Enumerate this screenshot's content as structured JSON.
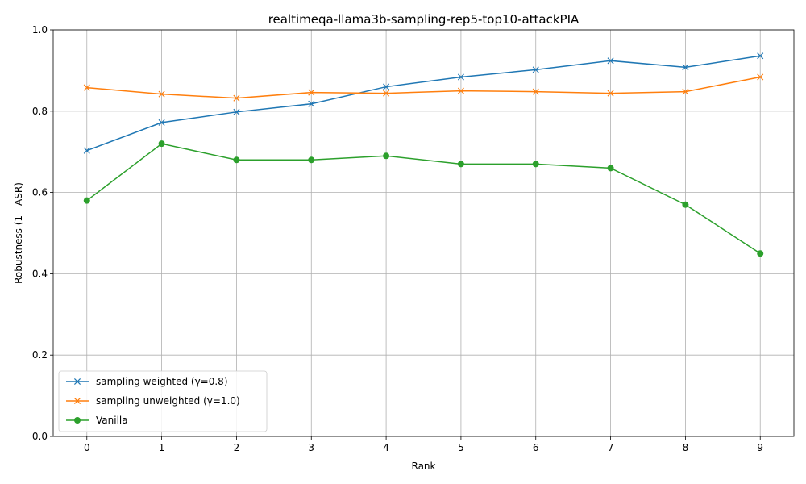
{
  "chart_data": {
    "type": "line",
    "title": "realtimeqa-llama3b-sampling-rep5-top10-attackPIA",
    "xlabel": "Rank",
    "ylabel": "Robustness (1 - ASR)",
    "x": [
      0,
      1,
      2,
      3,
      4,
      5,
      6,
      7,
      8,
      9
    ],
    "xlim": [
      -0.45,
      9.45
    ],
    "ylim": [
      0.0,
      1.0
    ],
    "xticks": [
      "0",
      "1",
      "2",
      "3",
      "4",
      "5",
      "6",
      "7",
      "8",
      "9"
    ],
    "yticks": [
      "0.0",
      "0.2",
      "0.4",
      "0.6",
      "0.8",
      "1.0"
    ],
    "grid": true,
    "legend_position": "lower-left",
    "series": [
      {
        "name": "sampling weighted (γ=0.8)",
        "color": "#1f77b4",
        "marker": "x",
        "values": [
          0.703,
          0.772,
          0.798,
          0.818,
          0.86,
          0.884,
          0.902,
          0.924,
          0.908,
          0.936
        ]
      },
      {
        "name": "sampling unweighted (γ=1.0)",
        "color": "#ff7f0e",
        "marker": "x",
        "values": [
          0.858,
          0.842,
          0.832,
          0.846,
          0.844,
          0.85,
          0.848,
          0.844,
          0.848,
          0.884
        ]
      },
      {
        "name": "Vanilla",
        "color": "#2ca02c",
        "marker": "o",
        "values": [
          0.58,
          0.72,
          0.68,
          0.68,
          0.69,
          0.67,
          0.67,
          0.66,
          0.57,
          0.45
        ]
      }
    ]
  }
}
